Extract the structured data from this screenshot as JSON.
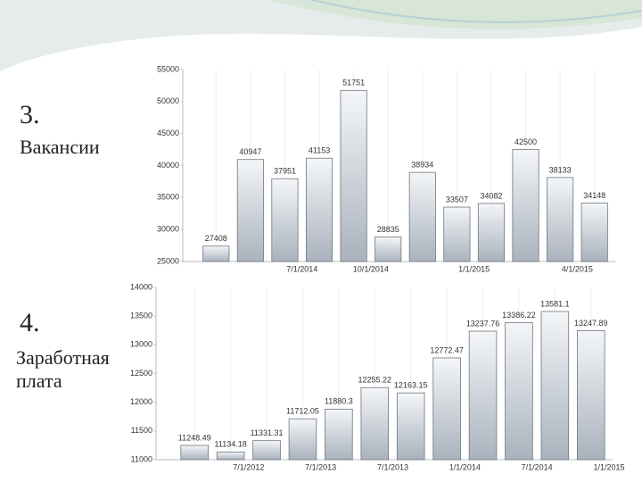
{
  "chart_data": [
    {
      "type": "bar",
      "section": "3.",
      "title": "Вакансии",
      "categories": [
        null,
        null,
        "7/1/2014",
        null,
        "10/1/2014",
        null,
        null,
        "1/1/2015",
        null,
        null,
        "4/1/2015",
        null
      ],
      "values": [
        27408,
        40947,
        37951,
        41153,
        51751,
        28835,
        38934,
        33507,
        34082,
        42500,
        38133,
        34148
      ],
      "ylim": [
        25000,
        55000
      ],
      "yticks": [
        25000,
        30000,
        35000,
        40000,
        45000,
        50000,
        55000
      ],
      "color": "#c9ced6"
    },
    {
      "type": "bar",
      "section": "4.",
      "title": "Заработная плата",
      "categories": [
        null,
        "7/1/2012",
        null,
        "7/1/2013",
        null,
        "7/1/2013",
        null,
        "1/1/2014",
        null,
        "7/1/2014",
        null,
        "1/1/2015"
      ],
      "values": [
        11248.49,
        11134.18,
        11331.31,
        11712.05,
        11880.3,
        12255.22,
        12163.15,
        12772.47,
        13237.76,
        13386.22,
        13581.1,
        13247.89
      ],
      "ylim": [
        11000,
        14000
      ],
      "yticks": [
        11000,
        11500,
        12000,
        12500,
        13000,
        13500,
        14000
      ],
      "color": "#c9ced6"
    }
  ]
}
